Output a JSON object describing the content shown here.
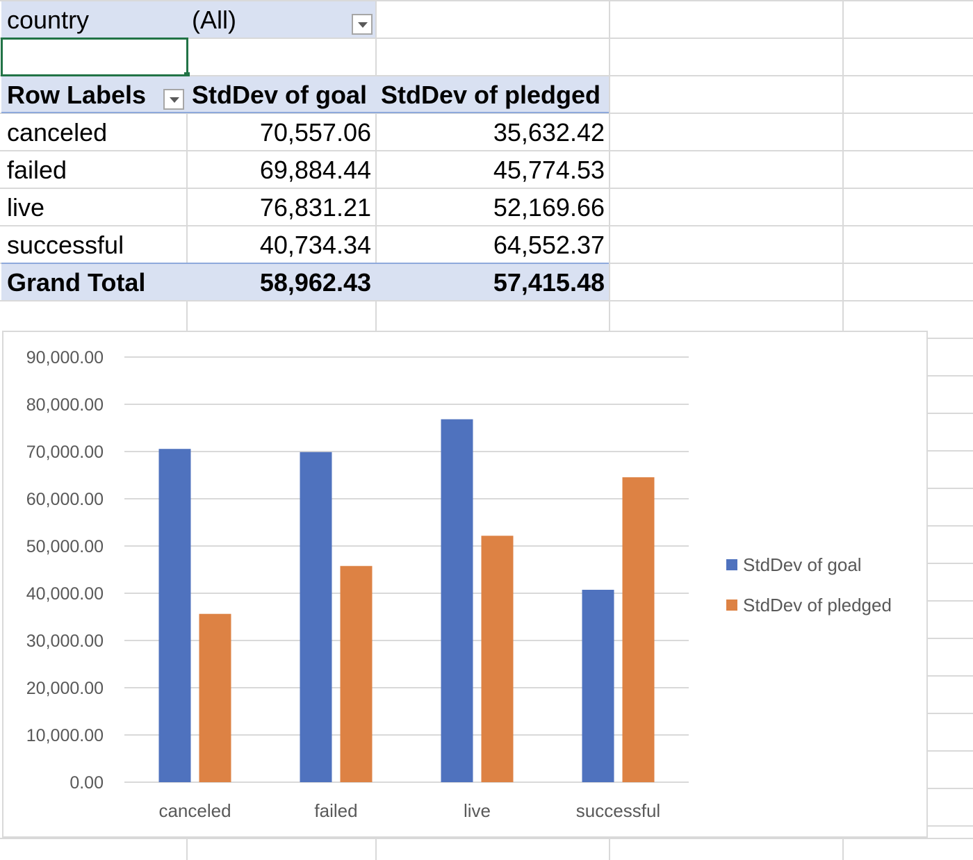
{
  "filter": {
    "field": "country",
    "value": "(All)"
  },
  "pivot": {
    "header": {
      "row_labels": "Row Labels",
      "col1": "StdDev of goal",
      "col2": "StdDev of pledged"
    },
    "rows": [
      {
        "label": "canceled",
        "goal": "70,557.06",
        "pledged": "35,632.42"
      },
      {
        "label": "failed",
        "goal": "69,884.44",
        "pledged": "45,774.53"
      },
      {
        "label": "live",
        "goal": "76,831.21",
        "pledged": "52,169.66"
      },
      {
        "label": "successful",
        "goal": "40,734.34",
        "pledged": "64,552.37"
      }
    ],
    "total": {
      "label": "Grand Total",
      "goal": "58,962.43",
      "pledged": "57,415.48"
    }
  },
  "colors": {
    "goal": "#4f72be",
    "pledged": "#dd8244",
    "header_bg": "#d9e1f2",
    "selection": "#217346"
  },
  "chart_data": {
    "type": "bar",
    "categories": [
      "canceled",
      "failed",
      "live",
      "successful"
    ],
    "series": [
      {
        "name": "StdDev of goal",
        "values": [
          70557.06,
          69884.44,
          76831.21,
          40734.34
        ]
      },
      {
        "name": "StdDev of pledged",
        "values": [
          35632.42,
          45774.53,
          52169.66,
          64552.37
        ]
      }
    ],
    "ylim": [
      0,
      90000
    ],
    "yticks": [
      "0.00",
      "10,000.00",
      "20,000.00",
      "30,000.00",
      "40,000.00",
      "50,000.00",
      "60,000.00",
      "70,000.00",
      "80,000.00",
      "90,000.00"
    ],
    "grid": true,
    "legend": "right"
  }
}
